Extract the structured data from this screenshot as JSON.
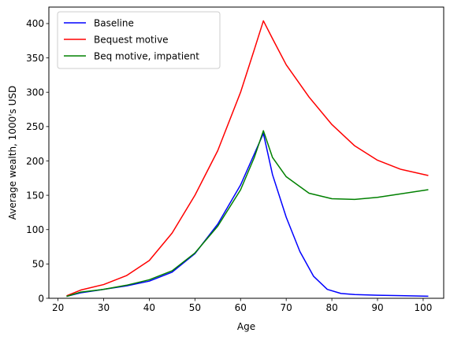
{
  "chart_data": {
    "type": "line",
    "title": "",
    "xlabel": "Age",
    "ylabel": "Average wealth, 1000's USD",
    "xlim": [
      18,
      104.5
    ],
    "ylim": [
      0,
      424
    ],
    "xticks": [
      20,
      30,
      40,
      50,
      60,
      70,
      80,
      90,
      100
    ],
    "yticks": [
      0,
      50,
      100,
      150,
      200,
      250,
      300,
      350,
      400
    ],
    "grid": false,
    "legend_position": "upper-left",
    "series": [
      {
        "name": "Baseline",
        "color": "#0000ff",
        "points": [
          [
            22,
            3
          ],
          [
            25,
            8
          ],
          [
            30,
            13
          ],
          [
            35,
            18
          ],
          [
            40,
            25
          ],
          [
            45,
            38
          ],
          [
            50,
            65
          ],
          [
            55,
            108
          ],
          [
            60,
            165
          ],
          [
            63,
            210
          ],
          [
            65,
            240
          ],
          [
            67,
            180
          ],
          [
            70,
            118
          ],
          [
            73,
            68
          ],
          [
            76,
            32
          ],
          [
            79,
            13
          ],
          [
            82,
            7
          ],
          [
            85,
            5.5
          ],
          [
            90,
            4.5
          ],
          [
            95,
            3.8
          ],
          [
            101,
            3
          ]
        ]
      },
      {
        "name": "Bequest motive",
        "color": "#ff0000",
        "points": [
          [
            22,
            4
          ],
          [
            25,
            12
          ],
          [
            30,
            20
          ],
          [
            35,
            33
          ],
          [
            40,
            55
          ],
          [
            45,
            95
          ],
          [
            50,
            150
          ],
          [
            55,
            215
          ],
          [
            60,
            300
          ],
          [
            63,
            362
          ],
          [
            65,
            404
          ],
          [
            67,
            378
          ],
          [
            70,
            340
          ],
          [
            75,
            293
          ],
          [
            80,
            253
          ],
          [
            85,
            222
          ],
          [
            90,
            201
          ],
          [
            95,
            188
          ],
          [
            101,
            179
          ]
        ]
      },
      {
        "name": "Beq motive, impatient",
        "color": "#008000",
        "points": [
          [
            22,
            3
          ],
          [
            25,
            9
          ],
          [
            30,
            13
          ],
          [
            35,
            19
          ],
          [
            40,
            27
          ],
          [
            45,
            40
          ],
          [
            50,
            66
          ],
          [
            55,
            105
          ],
          [
            60,
            158
          ],
          [
            63,
            205
          ],
          [
            65,
            244
          ],
          [
            67,
            205
          ],
          [
            70,
            177
          ],
          [
            75,
            153
          ],
          [
            80,
            145
          ],
          [
            85,
            144
          ],
          [
            90,
            147
          ],
          [
            95,
            152
          ],
          [
            101,
            158
          ]
        ]
      }
    ]
  }
}
